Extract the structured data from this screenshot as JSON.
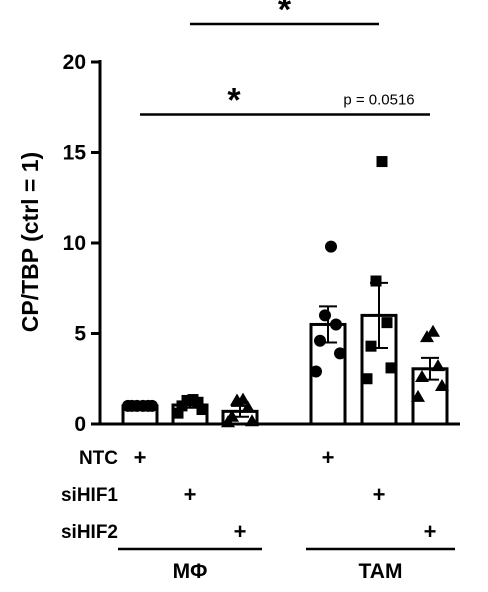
{
  "chart_data": {
    "type": "bar",
    "ylabel": "CP/TBP (ctrl = 1)",
    "ylim": [
      0,
      20
    ],
    "yticks": [
      0,
      5,
      10,
      15,
      20
    ],
    "categories": [
      "MΦ NTC",
      "MΦ siHIF1",
      "MΦ siHIF2",
      "TAM NTC",
      "TAM siHIF1",
      "TAM siHIF2"
    ],
    "values": [
      1.0,
      1.05,
      0.7,
      5.5,
      6.0,
      3.05
    ],
    "errors": [
      0.05,
      0.15,
      0.3,
      1.0,
      1.8,
      0.6
    ],
    "markers": [
      "circle",
      "square",
      "triangle",
      "circle",
      "square",
      "triangle"
    ],
    "points": [
      [
        1.0,
        1.0,
        1.0,
        1.0,
        1.0,
        1.0
      ],
      [
        0.6,
        0.8,
        1.0,
        1.2,
        1.3,
        1.35
      ],
      [
        0.1,
        0.15,
        0.4,
        0.9,
        1.3,
        1.35
      ],
      [
        2.9,
        3.9,
        4.6,
        5.5,
        6.0,
        9.8
      ],
      [
        2.5,
        3.1,
        4.3,
        5.6,
        7.9,
        14.5
      ],
      [
        1.5,
        2.1,
        2.6,
        3.2,
        4.8,
        5.1
      ]
    ],
    "conditions": [
      {
        "label": "NTC",
        "marks": [
          true,
          false,
          false,
          true,
          false,
          false
        ]
      },
      {
        "label": "siHIF1",
        "marks": [
          false,
          true,
          false,
          false,
          true,
          false
        ]
      },
      {
        "label": "siHIF2",
        "marks": [
          false,
          false,
          true,
          false,
          false,
          true
        ]
      }
    ],
    "plus_symbol": "+",
    "groups": [
      "MΦ",
      "TAM"
    ],
    "annotations": [
      {
        "from": 1,
        "to": 4,
        "level": 22.1,
        "text": "*"
      },
      {
        "from": 0,
        "to": 3,
        "level": 17.1,
        "text": "*"
      },
      {
        "from": 3,
        "to": 5,
        "level": 17.1,
        "text": "p = 0.0516"
      }
    ]
  }
}
